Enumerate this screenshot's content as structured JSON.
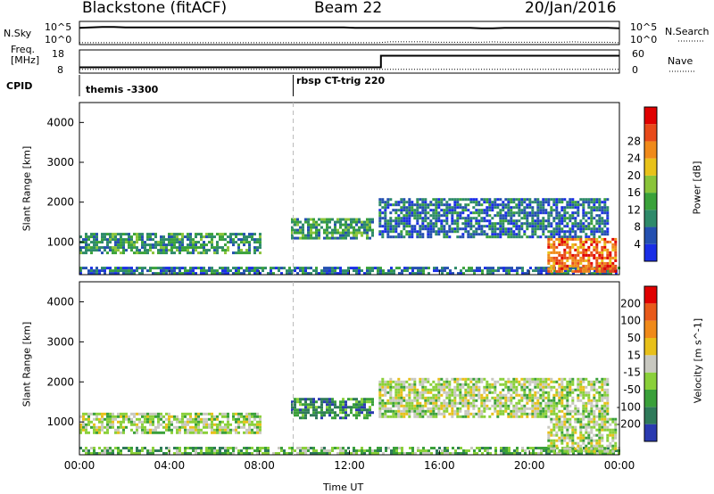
{
  "header": {
    "radar": "Blackstone (fitACF)",
    "beam": "Beam 22",
    "date": "20/Jan/2016"
  },
  "colors": {
    "power": [
      "#1a2ee6",
      "#2450b0",
      "#2e8a6a",
      "#3aa23a",
      "#8ac43a",
      "#e8c21a",
      "#f08a1a",
      "#e84a1a",
      "#e00000"
    ],
    "velocity": [
      "#2a3ab0",
      "#2f7a5a",
      "#3aa03a",
      "#8ad03a",
      "#c8c8c0",
      "#e8c01a",
      "#f08a1a",
      "#e85a1a",
      "#e00000"
    ]
  },
  "chart_data": [
    {
      "type": "line",
      "name_panel": "sky-noise-search-noise",
      "left_label": "N.Sky",
      "right_label": "N.Search",
      "left_ticks": [
        "10^5",
        "10^0"
      ],
      "right_ticks": [
        "10^5",
        "10^0"
      ],
      "series": [
        {
          "name": "N.Sky",
          "style": "solid",
          "values": [
            3.6,
            3.7,
            3.8,
            3.8,
            3.7,
            3.7,
            3.7,
            3.7,
            3.7,
            3.7,
            3.7,
            3.7,
            3.7,
            3.7,
            3.7,
            3.7,
            3.7,
            3.7,
            3.7,
            3.7,
            3.7,
            3.7,
            3.7,
            3.7,
            3.6,
            3.6,
            3.6,
            3.6,
            3.6,
            3.6,
            3.6,
            3.6,
            3.6,
            3.6,
            3.6,
            3.5,
            3.5,
            3.6,
            3.6,
            3.6,
            3.6,
            3.6,
            3.6,
            3.6,
            3.6,
            3.6,
            3.6,
            3.5
          ]
        },
        {
          "name": "N.Search",
          "style": "dotted",
          "values": [
            0.4,
            0.4,
            0.4,
            0.4,
            0.4,
            0.4,
            0.4,
            0.4,
            0.4,
            0.4,
            0.4,
            0.4,
            0.4,
            0.4,
            0.4,
            0.4,
            0.4,
            0.4,
            0.4,
            0.4,
            0.4,
            0.4,
            0.4,
            0.4,
            0.4,
            0.4,
            0.4,
            0.6,
            0.6,
            0.6,
            0.6,
            0.5,
            0.5,
            0.5,
            0.5,
            0.5,
            0.6,
            0.5,
            0.5,
            0.5,
            0.5,
            0.5,
            0.5,
            0.6,
            0.5,
            0.5,
            0.5,
            0.4
          ]
        }
      ]
    },
    {
      "type": "line",
      "name_panel": "frequency-nave",
      "left_label": "Freq. [MHz]",
      "right_label": "Nave",
      "left_ticks": [
        "18",
        "8"
      ],
      "right_ticks": [
        "60",
        "0"
      ],
      "series": [
        {
          "name": "Freq",
          "style": "solid",
          "x_hours": [
            0,
            13.4,
            13.4,
            24
          ],
          "values": [
            10.5,
            10.5,
            15.5,
            15.5
          ]
        },
        {
          "name": "Nave",
          "style": "dotted",
          "x_hours": [
            0,
            24
          ],
          "values": [
            10,
            10
          ]
        }
      ]
    },
    {
      "type": "table",
      "name_panel": "cpid",
      "label": "CPID",
      "segments": [
        {
          "start_hour": 0,
          "text": "themis -3300"
        },
        {
          "start_hour": 9.5,
          "text": "rbsp CT-trig 220"
        }
      ]
    },
    {
      "type": "heatmap",
      "name_panel": "power",
      "ylabel": "Slant Range [km]",
      "yticks": [
        1000,
        2000,
        3000,
        4000
      ],
      "ylim": [
        180,
        4500
      ],
      "xticks": [
        "00:00",
        "04:00",
        "08:00",
        "12:00",
        "16:00",
        "20:00",
        "00:00"
      ],
      "xlim": [
        0,
        24
      ],
      "colorbar_label": "Power [dB]",
      "colorbar_ticks": [
        "4",
        "8",
        "12",
        "16",
        "20",
        "24",
        "28"
      ],
      "echo_regions": [
        {
          "x_start": 0.0,
          "x_end": 8.0,
          "r_low": 750,
          "r_high": 1230,
          "level": 3
        },
        {
          "x_start": 0.0,
          "x_end": 24.0,
          "r_low": 190,
          "r_high": 380,
          "level": 2
        },
        {
          "x_start": 9.4,
          "x_end": 13.0,
          "r_low": 1100,
          "r_high": 1600,
          "level": 3
        },
        {
          "x_start": 13.3,
          "x_end": 23.5,
          "r_low": 1100,
          "r_high": 2100,
          "level": 2
        },
        {
          "x_start": 20.8,
          "x_end": 23.8,
          "r_low": 250,
          "r_high": 1100,
          "level": 7
        }
      ]
    },
    {
      "type": "heatmap",
      "name_panel": "velocity",
      "ylabel": "Slant Range [km]",
      "yticks": [
        1000,
        2000,
        3000,
        4000
      ],
      "ylim": [
        180,
        4500
      ],
      "xticks": [
        "00:00",
        "04:00",
        "08:00",
        "12:00",
        "16:00",
        "20:00",
        "00:00"
      ],
      "xlabel": "Time UT",
      "xlim": [
        0,
        24
      ],
      "colorbar_label": "Velocity [m s^-1]",
      "colorbar_ticks": [
        "200",
        "100",
        "50",
        "15",
        "-15",
        "-50",
        "-100",
        "-200"
      ],
      "echo_regions": [
        {
          "x_start": 0.0,
          "x_end": 8.0,
          "r_low": 750,
          "r_high": 1230,
          "level": 4
        },
        {
          "x_start": 0.0,
          "x_end": 24.0,
          "r_low": 190,
          "r_high": 380,
          "level": 3
        },
        {
          "x_start": 9.4,
          "x_end": 13.0,
          "r_low": 1100,
          "r_high": 1600,
          "level": 2
        },
        {
          "x_start": 13.3,
          "x_end": 23.5,
          "r_low": 1100,
          "r_high": 2100,
          "level": 4
        },
        {
          "x_start": 20.8,
          "x_end": 23.8,
          "r_low": 250,
          "r_high": 1100,
          "level": 4
        }
      ]
    }
  ]
}
